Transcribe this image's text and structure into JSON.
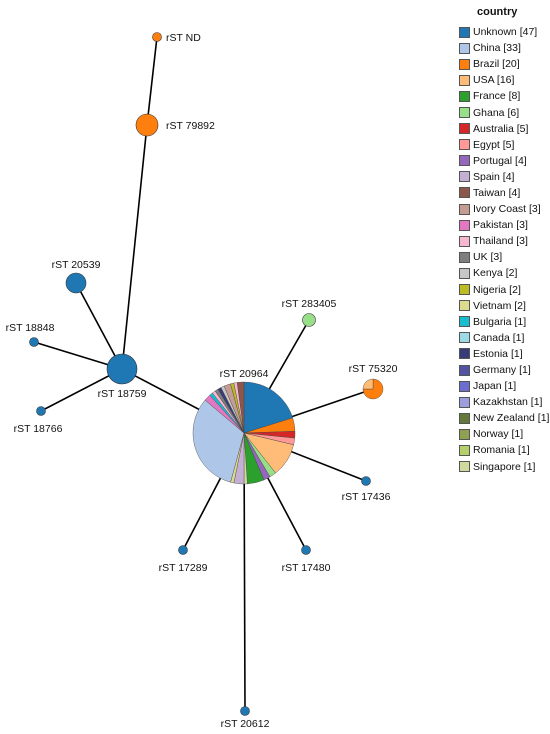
{
  "legend": {
    "title": "country",
    "items": [
      {
        "label": "Unknown [47]",
        "color": "#1f77b4"
      },
      {
        "label": "China [33]",
        "color": "#aec7e8"
      },
      {
        "label": "Brazil [20]",
        "color": "#ff7f0e"
      },
      {
        "label": "USA [16]",
        "color": "#ffbb78"
      },
      {
        "label": "France [8]",
        "color": "#2ca02c"
      },
      {
        "label": "Ghana [6]",
        "color": "#98df8a"
      },
      {
        "label": "Australia [5]",
        "color": "#d62728"
      },
      {
        "label": "Egypt [5]",
        "color": "#ff9896"
      },
      {
        "label": "Portugal [4]",
        "color": "#9467bd"
      },
      {
        "label": "Spain [4]",
        "color": "#c5b0d5"
      },
      {
        "label": "Taiwan [4]",
        "color": "#8c564b"
      },
      {
        "label": "Ivory Coast [3]",
        "color": "#c49c94"
      },
      {
        "label": "Pakistan [3]",
        "color": "#e377c2"
      },
      {
        "label": "Thailand [3]",
        "color": "#f7b6d2"
      },
      {
        "label": "UK [3]",
        "color": "#7f7f7f"
      },
      {
        "label": "Kenya [2]",
        "color": "#c7c7c7"
      },
      {
        "label": "Nigeria [2]",
        "color": "#bcbd22"
      },
      {
        "label": "Vietnam [2]",
        "color": "#dbdb8d"
      },
      {
        "label": "Bulgaria [1]",
        "color": "#17becf"
      },
      {
        "label": "Canada [1]",
        "color": "#9edae5"
      },
      {
        "label": "Estonia [1]",
        "color": "#393b79"
      },
      {
        "label": "Germany [1]",
        "color": "#5254a3"
      },
      {
        "label": "Japan [1]",
        "color": "#6b6ecf"
      },
      {
        "label": "Kazakhstan [1]",
        "color": "#9c9ede"
      },
      {
        "label": "New Zealand [1]",
        "color": "#637939"
      },
      {
        "label": "Norway [1]",
        "color": "#8ca252"
      },
      {
        "label": "Romania [1]",
        "color": "#b5cf6b"
      },
      {
        "label": "Singapore [1]",
        "color": "#cedb9c"
      }
    ]
  },
  "nodes": [
    {
      "id": "n20964",
      "label": "rST 20964",
      "pie": [
        {
          "country": "Unknown",
          "count": 19
        },
        {
          "country": "Brazil",
          "count": 4
        },
        {
          "country": "Australia",
          "count": 2
        },
        {
          "country": "Egypt",
          "count": 2
        },
        {
          "country": "USA",
          "count": 10
        },
        {
          "country": "Ghana",
          "count": 2
        },
        {
          "country": "Portugal",
          "count": 2
        },
        {
          "country": "France",
          "count": 5
        },
        {
          "country": "Singapore",
          "count": 1
        },
        {
          "country": "Spain",
          "count": 3
        },
        {
          "country": "Vietnam",
          "count": 1
        },
        {
          "country": "China",
          "count": 30
        },
        {
          "country": "Pakistan",
          "count": 2
        },
        {
          "country": "Bulgaria",
          "count": 1
        },
        {
          "country": "Thailand",
          "count": 1
        },
        {
          "country": "UK",
          "count": 1
        },
        {
          "country": "Estonia",
          "count": 1
        },
        {
          "country": "Kenya",
          "count": 1
        },
        {
          "country": "Ivory Coast",
          "count": 2
        },
        {
          "country": "Nigeria",
          "count": 1
        },
        {
          "country": "Thailand",
          "count": 1
        },
        {
          "country": "Taiwan",
          "count": 2
        }
      ]
    },
    {
      "id": "n18759",
      "label": "rST 18759",
      "pie": [
        {
          "country": "Unknown",
          "count": 9
        }
      ]
    },
    {
      "id": "n20539",
      "label": "rST 20539",
      "pie": [
        {
          "country": "Unknown",
          "count": 4
        }
      ]
    },
    {
      "id": "n79892",
      "label": "rST 79892",
      "pie": [
        {
          "country": "Brazil",
          "count": 4
        }
      ]
    },
    {
      "id": "nND",
      "label": "rST ND",
      "pie": [
        {
          "country": "Brazil",
          "count": 1
        }
      ]
    },
    {
      "id": "n18848",
      "label": "rST 18848",
      "pie": [
        {
          "country": "Unknown",
          "count": 1
        }
      ]
    },
    {
      "id": "n18766",
      "label": "rST 18766",
      "pie": [
        {
          "country": "Unknown",
          "count": 1
        }
      ]
    },
    {
      "id": "n283405",
      "label": "rST 283405",
      "pie": [
        {
          "country": "Ghana",
          "count": 1
        }
      ]
    },
    {
      "id": "n75320",
      "label": "rST 75320",
      "pie": [
        {
          "country": "Brazil",
          "count": 3
        },
        {
          "country": "USA",
          "count": 1
        }
      ]
    },
    {
      "id": "n17436",
      "label": "rST 17436",
      "pie": [
        {
          "country": "Unknown",
          "count": 1
        }
      ]
    },
    {
      "id": "n17480",
      "label": "rST 17480",
      "pie": [
        {
          "country": "Unknown",
          "count": 1
        }
      ]
    },
    {
      "id": "n17289",
      "label": "rST 17289",
      "pie": [
        {
          "country": "Unknown",
          "count": 1
        }
      ]
    },
    {
      "id": "n20612",
      "label": "rST 20612",
      "pie": [
        {
          "country": "Unknown",
          "count": 1
        }
      ]
    }
  ],
  "edges": [
    [
      "nND",
      "n79892"
    ],
    [
      "n79892",
      "n18759"
    ],
    [
      "n20539",
      "n18759"
    ],
    [
      "n18848",
      "n18759"
    ],
    [
      "n18766",
      "n18759"
    ],
    [
      "n18759",
      "n20964"
    ],
    [
      "n20964",
      "n283405"
    ],
    [
      "n20964",
      "n75320"
    ],
    [
      "n20964",
      "n17436"
    ],
    [
      "n20964",
      "n17480"
    ],
    [
      "n20964",
      "n17289"
    ],
    [
      "n20964",
      "n20612"
    ]
  ]
}
